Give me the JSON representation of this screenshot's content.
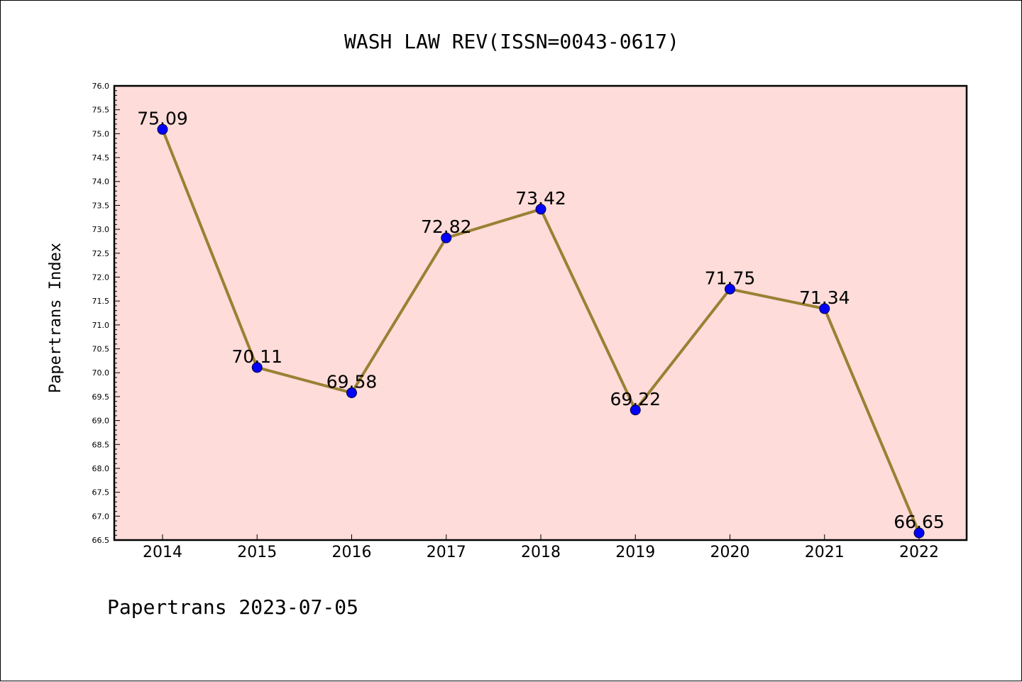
{
  "chart_data": {
    "type": "line",
    "title": "WASH LAW REV(ISSN=0043-0617)",
    "ylabel": "Papertrans Index",
    "xlabel": "",
    "categories": [
      "2014",
      "2015",
      "2016",
      "2017",
      "2018",
      "2019",
      "2020",
      "2021",
      "2022"
    ],
    "values": [
      75.09,
      70.11,
      69.58,
      72.82,
      73.42,
      69.22,
      71.75,
      71.34,
      66.65
    ],
    "data_labels": [
      "75.09",
      "70.11",
      "69.58",
      "72.82",
      "73.42",
      "69.22",
      "71.75",
      "71.34",
      "66.65"
    ],
    "ylim": [
      66.5,
      76.0
    ],
    "y_major_ticks": [
      "66.5",
      "67.0",
      "67.5",
      "68.0",
      "68.5",
      "69.0",
      "69.5",
      "70.0",
      "70.5",
      "71.0",
      "71.5",
      "72.0",
      "72.5",
      "73.0",
      "73.5",
      "74.0",
      "74.5",
      "75.0",
      "75.5",
      "76.0"
    ],
    "y_minor_step": 0.1,
    "grid": false,
    "line_color": "#9a8034",
    "marker_color": "#0000ff",
    "plot_background": "#fddcd9",
    "footer": "Papertrans 2023-07-05"
  }
}
